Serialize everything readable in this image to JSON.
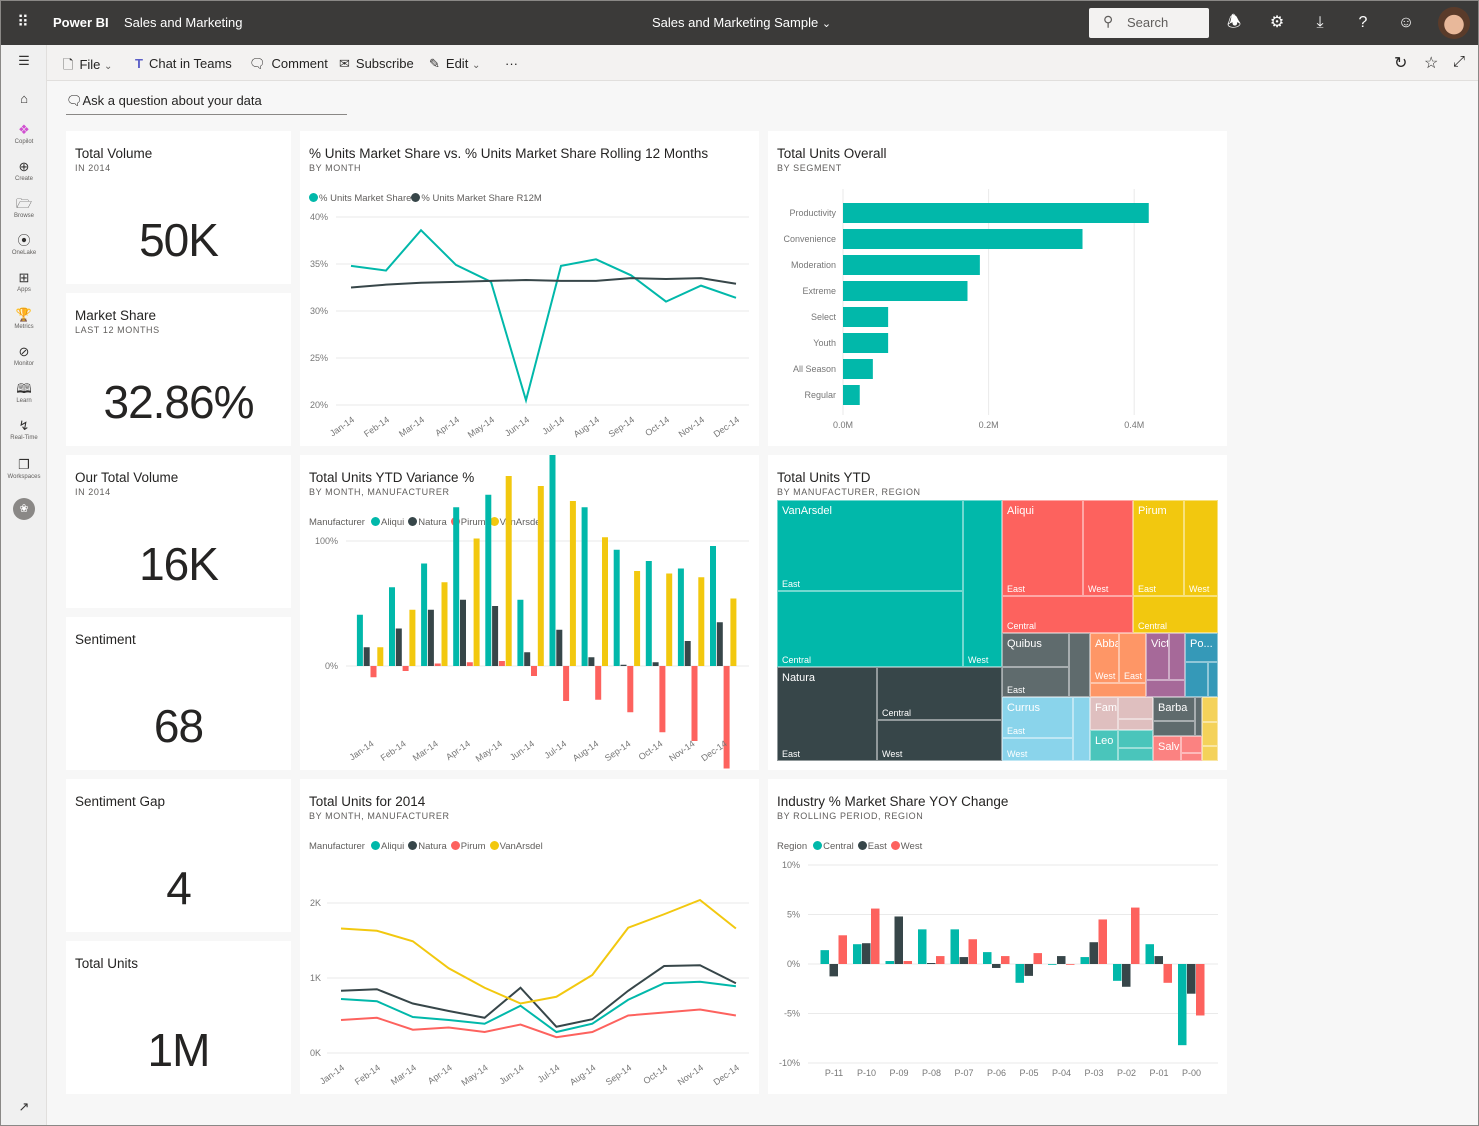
{
  "app": {
    "product": "Power BI",
    "workspace": "Sales and Marketing",
    "report_title": "Sales and Marketing Sample",
    "search_placeholder": "Search"
  },
  "sidebar": {
    "items": [
      {
        "label": "Copilot"
      },
      {
        "label": "Create"
      },
      {
        "label": "Browse"
      },
      {
        "label": "OneLake"
      },
      {
        "label": "Apps"
      },
      {
        "label": "Metrics"
      },
      {
        "label": "Monitor"
      },
      {
        "label": "Learn"
      },
      {
        "label": "Real-Time"
      },
      {
        "label": "Workspaces"
      }
    ]
  },
  "toolbar": {
    "file": "File",
    "chat_in_teams": "Chat in Teams",
    "comment": "Comment",
    "subscribe": "Subscribe",
    "edit": "Edit",
    "more": "···"
  },
  "qna": {
    "placeholder": "Ask a question about your data"
  },
  "kpis": [
    {
      "title": "Total Volume",
      "subtitle": "IN 2014",
      "value": "50K"
    },
    {
      "title": "Market Share",
      "subtitle": "LAST 12 MONTHS",
      "value": "32.86%"
    },
    {
      "title": "Our Total Volume",
      "subtitle": "IN 2014",
      "value": "16K"
    },
    {
      "title": "Sentiment",
      "subtitle": "",
      "value": "68"
    },
    {
      "title": "Sentiment Gap",
      "subtitle": "",
      "value": "4"
    },
    {
      "title": "Total Units",
      "subtitle": "",
      "value": "1M"
    }
  ],
  "chart_data": [
    {
      "type": "line",
      "title": "% Units Market Share vs. % Units Market Share Rolling 12 Months",
      "subtitle": "BY MONTH",
      "categories": [
        "Jan-14",
        "Feb-14",
        "Mar-14",
        "Apr-14",
        "May-14",
        "Jun-14",
        "Jul-14",
        "Aug-14",
        "Sep-14",
        "Oct-14",
        "Nov-14",
        "Dec-14"
      ],
      "y_ticks": [
        "20%",
        "25%",
        "30%",
        "35%",
        "40%"
      ],
      "ylim": [
        20,
        40
      ],
      "grid": true,
      "legend": "top-left",
      "series": [
        {
          "name": "% Units Market Share",
          "color": "#01B8AA",
          "values": [
            34.8,
            34.3,
            38.6,
            34.9,
            33.1,
            20.5,
            34.8,
            35.5,
            33.8,
            31.0,
            32.7,
            31.4
          ]
        },
        {
          "name": "% Units Market Share R12M",
          "color": "#374649",
          "values": [
            32.5,
            32.8,
            33.0,
            33.1,
            33.2,
            33.3,
            33.2,
            33.2,
            33.5,
            33.4,
            33.5,
            32.9
          ]
        }
      ]
    },
    {
      "type": "bar",
      "orientation": "horizontal",
      "title": "Total Units Overall",
      "subtitle": "BY SEGMENT",
      "categories": [
        "Productivity",
        "Convenience",
        "Moderation",
        "Extreme",
        "Select",
        "Youth",
        "All Season",
        "Regular"
      ],
      "values": [
        0.42,
        0.329,
        0.188,
        0.171,
        0.062,
        0.062,
        0.041,
        0.023
      ],
      "x_ticks": [
        "0.0M",
        "0.2M",
        "0.4M"
      ],
      "xlim": [
        0,
        0.4
      ],
      "color": "#01B8AA",
      "grid": true
    },
    {
      "type": "bar",
      "title": "Total Units YTD Variance %",
      "subtitle": "BY MONTH, MANUFACTURER",
      "legend_title": "Manufacturer",
      "categories": [
        "Jan-14",
        "Feb-14",
        "Mar-14",
        "Apr-14",
        "May-14",
        "Jun-14",
        "Jul-14",
        "Aug-14",
        "Sep-14",
        "Oct-14",
        "Nov-14",
        "Dec-14"
      ],
      "y_ticks": [
        "-100%",
        "0%",
        "100%",
        "200%"
      ],
      "ylim": [
        -100,
        200
      ],
      "grid": true,
      "legend": "top-left",
      "series": [
        {
          "name": "Aliqui",
          "color": "#01B8AA",
          "values": [
            41,
            63,
            82,
            127,
            137,
            53,
            172,
            127,
            93,
            84,
            78,
            96
          ]
        },
        {
          "name": "Natura",
          "color": "#374649",
          "values": [
            15,
            30,
            45,
            53,
            48,
            11,
            29,
            7,
            1,
            3,
            20,
            35
          ]
        },
        {
          "name": "Pirum",
          "color": "#FD625E",
          "values": [
            -9,
            -4,
            2,
            3,
            4,
            -8,
            -28,
            -27,
            -37,
            -53,
            -60,
            -82
          ]
        },
        {
          "name": "VanArsdel",
          "color": "#F2C80F",
          "values": [
            15,
            45,
            67,
            102,
            152,
            144,
            132,
            103,
            76,
            74,
            71,
            54
          ]
        }
      ]
    },
    {
      "type": "treemap",
      "title": "Total Units YTD",
      "subtitle": "BY MANUFACTURER, REGION",
      "groups": [
        {
          "name": "VanArsdel",
          "color": "#01B8AA",
          "regions": [
            "East",
            "Central",
            "West"
          ]
        },
        {
          "name": "Natura",
          "color": "#374649",
          "regions": [
            "East",
            "Central",
            "West"
          ]
        },
        {
          "name": "Aliqui",
          "color": "#FD625E",
          "regions": [
            "East",
            "West",
            "Central"
          ]
        },
        {
          "name": "Pirum",
          "color": "#F2C80F",
          "regions": [
            "East",
            "West",
            "Central"
          ]
        },
        {
          "name": "Quibus",
          "color": "#5F6B6D",
          "regions": [
            "East"
          ]
        },
        {
          "name": "Abbas",
          "color": "#FE9666",
          "regions": [
            "West",
            "East"
          ]
        },
        {
          "name": "Vict...",
          "color": "#A66999",
          "regions": []
        },
        {
          "name": "Po...",
          "color": "#3599B8",
          "regions": []
        },
        {
          "name": "Currus",
          "color": "#8AD4EB",
          "regions": [
            "East",
            "West"
          ]
        },
        {
          "name": "Fama",
          "color": "#DFBFBF",
          "regions": []
        },
        {
          "name": "Leo",
          "color": "#4AC5BB",
          "regions": []
        },
        {
          "name": "Barba",
          "color": "#5F6B6D",
          "regions": []
        },
        {
          "name": "Salvus",
          "color": "#FB8281",
          "regions": []
        },
        {
          "name": "",
          "color": "#F4D25A",
          "regions": []
        }
      ]
    },
    {
      "type": "line",
      "title": "Total Units for 2014",
      "subtitle": "BY MONTH, MANUFACTURER",
      "legend_title": "Manufacturer",
      "categories": [
        "Jan-14",
        "Feb-14",
        "Mar-14",
        "Apr-14",
        "May-14",
        "Jun-14",
        "Jul-14",
        "Aug-14",
        "Sep-14",
        "Oct-14",
        "Nov-14",
        "Dec-14"
      ],
      "y_ticks": [
        "0K",
        "1K",
        "2K"
      ],
      "ylim": [
        0,
        2
      ],
      "grid": true,
      "legend": "top-left",
      "series": [
        {
          "name": "Aliqui",
          "color": "#01B8AA",
          "values": [
            0.72,
            0.69,
            0.48,
            0.44,
            0.39,
            0.63,
            0.28,
            0.39,
            0.71,
            0.93,
            0.95,
            0.89
          ]
        },
        {
          "name": "Natura",
          "color": "#374649",
          "values": [
            0.83,
            0.85,
            0.66,
            0.56,
            0.47,
            0.87,
            0.35,
            0.45,
            0.83,
            1.16,
            1.17,
            0.93
          ]
        },
        {
          "name": "Pirum",
          "color": "#FD625E",
          "values": [
            0.44,
            0.47,
            0.31,
            0.34,
            0.28,
            0.38,
            0.21,
            0.28,
            0.5,
            0.54,
            0.58,
            0.5
          ]
        },
        {
          "name": "VanArsdel",
          "color": "#F2C80F",
          "values": [
            1.66,
            1.63,
            1.49,
            1.13,
            0.87,
            0.66,
            0.75,
            1.04,
            1.67,
            1.85,
            2.04,
            1.66
          ]
        }
      ]
    },
    {
      "type": "bar",
      "title": "Industry % Market Share YOY Change",
      "subtitle": "BY ROLLING PERIOD, REGION",
      "legend_title": "Region",
      "categories": [
        "P-11",
        "P-10",
        "P-09",
        "P-08",
        "P-07",
        "P-06",
        "P-05",
        "P-04",
        "P-03",
        "P-02",
        "P-01",
        "P-00"
      ],
      "y_ticks": [
        "-10%",
        "-5%",
        "0%",
        "5%",
        "10%"
      ],
      "ylim": [
        -10,
        10
      ],
      "grid": true,
      "legend": "top-left",
      "series": [
        {
          "name": "Central",
          "color": "#01B8AA",
          "values": [
            1.4,
            2.0,
            0.3,
            3.5,
            3.5,
            1.2,
            -1.9,
            -0.05,
            0.7,
            -1.7,
            2.0,
            -8.2
          ]
        },
        {
          "name": "East",
          "color": "#374649",
          "values": [
            -1.25,
            2.1,
            4.8,
            0.1,
            0.7,
            -0.4,
            -1.2,
            0.8,
            2.2,
            -2.3,
            0.8,
            -3.0
          ]
        },
        {
          "name": "West",
          "color": "#FD625E",
          "values": [
            2.9,
            5.6,
            0.3,
            0.8,
            2.5,
            0.8,
            1.1,
            -0.05,
            4.5,
            5.7,
            -1.9,
            -5.2
          ]
        }
      ]
    }
  ]
}
